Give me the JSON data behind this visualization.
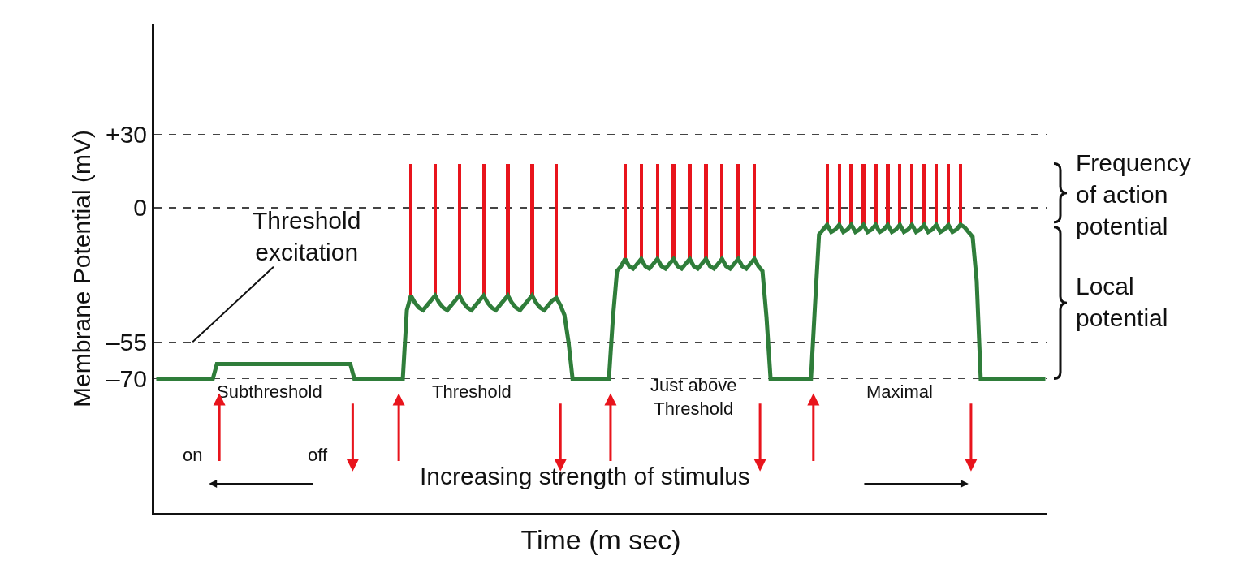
{
  "chart_data": {
    "type": "line",
    "xlabel": "Time (m sec)",
    "ylabel": "Membrane Potential (mV)",
    "categories": [
      null,
      null,
      null,
      null,
      null,
      null,
      null,
      null,
      null,
      null,
      null,
      null,
      null,
      null,
      null,
      null,
      null,
      null,
      null,
      null,
      null,
      null,
      null,
      null,
      null,
      null,
      null,
      null,
      null,
      null,
      null,
      null,
      null,
      null,
      null,
      null,
      null,
      null,
      null,
      null,
      null,
      null,
      null,
      null,
      null,
      null,
      null,
      null,
      null,
      null,
      null,
      null,
      null,
      null,
      null,
      null,
      null,
      null,
      null,
      null,
      null,
      null,
      null,
      null,
      null,
      null,
      null,
      null,
      null,
      null,
      null,
      null,
      null,
      null,
      null,
      null,
      null,
      null,
      null,
      null,
      null,
      null,
      null,
      null,
      null,
      null,
      null,
      null,
      null,
      null,
      null,
      null,
      null,
      null,
      null,
      null,
      null,
      null,
      null,
      null,
      null,
      null,
      null,
      null,
      null,
      null,
      null,
      null,
      null,
      null,
      null,
      null,
      null,
      null,
      null,
      null,
      null,
      null,
      null,
      null,
      null,
      null,
      null,
      null,
      null,
      null,
      null,
      null,
      null,
      null,
      null,
      null,
      null,
      null,
      null,
      null,
      null,
      null,
      null,
      null,
      null,
      null,
      null,
      null,
      null,
      null,
      null,
      null,
      null,
      null,
      null,
      null,
      null,
      null,
      null,
      null,
      null,
      null,
      null,
      null,
      null,
      null,
      null,
      null,
      null,
      null,
      null,
      null,
      null,
      null,
      null,
      null,
      null,
      null,
      null,
      null,
      null,
      null,
      null,
      null,
      null,
      null,
      null,
      null,
      null,
      null,
      null,
      null,
      null,
      null,
      null,
      null,
      null,
      null,
      null,
      null,
      null,
      null,
      null,
      null,
      null,
      null,
      null,
      null,
      null,
      null,
      null,
      null,
      null,
      null,
      null,
      null,
      null,
      null,
      null,
      null,
      null,
      null,
      null,
      null,
      null
    ],
    "series": [
      {
        "color": "#2f7d3a",
        "values": [
          -70,
          -70,
          -70,
          -70,
          -70,
          -70,
          -70,
          -70,
          -70,
          -70,
          -70,
          -70,
          -70,
          -70,
          -70,
          -64,
          -64,
          -64,
          -64,
          -64,
          -64,
          -64,
          -64,
          -64,
          -64,
          -64,
          -64,
          -64,
          -64,
          -64,
          -64,
          -64,
          -64,
          -64,
          -64,
          -64,
          -64,
          -64,
          -64,
          -64,
          -64,
          -64,
          -64,
          -64,
          -64,
          -64,
          -64,
          -64,
          -64,
          -70,
          -70,
          -70,
          -70,
          -70,
          -70,
          -70,
          -70,
          -70,
          -70,
          -70,
          -70,
          -70,
          -42,
          -36,
          -39,
          -41,
          -42,
          -40,
          -38,
          -36,
          -39,
          -41,
          -42,
          -40,
          -38,
          -36,
          -39,
          -41,
          -42,
          -40,
          -38,
          -36,
          -39,
          -41,
          -42,
          -40,
          -38,
          -36,
          -39,
          -41,
          -42,
          -40,
          -38,
          -36,
          -39,
          -41,
          -42,
          -40,
          -38,
          -37,
          -40,
          -44,
          -55,
          -70,
          -70,
          -70,
          -70,
          -70,
          -70,
          -70,
          -70,
          -70,
          -70,
          -45,
          -26,
          -24,
          -21,
          -24,
          -25,
          -23,
          -21,
          -24,
          -25,
          -23,
          -21,
          -24,
          -25,
          -23,
          -21,
          -24,
          -25,
          -23,
          -21,
          -24,
          -25,
          -23,
          -21,
          -24,
          -25,
          -23,
          -21,
          -24,
          -25,
          -23,
          -21,
          -24,
          -25,
          -23,
          -21,
          -24,
          -26,
          -45,
          -70,
          -70,
          -70,
          -70,
          -70,
          -70,
          -70,
          -70,
          -70,
          -70,
          -70,
          -40,
          -11,
          -9,
          -7,
          -10,
          -9,
          -7,
          -10,
          -9,
          -7,
          -10,
          -9,
          -7,
          -10,
          -9,
          -7,
          -10,
          -9,
          -7,
          -10,
          -9,
          -7,
          -10,
          -9,
          -7,
          -10,
          -9,
          -7,
          -10,
          -9,
          -7,
          -10,
          -9,
          -7,
          -10,
          -9,
          -7,
          -8,
          -10,
          -12,
          -30,
          -70,
          -70,
          -70,
          -70,
          -70,
          -70,
          -70,
          -70,
          -70,
          -70,
          -70,
          -70,
          -70,
          -70,
          -70,
          -70,
          -70
        ]
      },
      {
        "type": "bar",
        "color": "#e8141c",
        "base": [
          null,
          null,
          null,
          null,
          null,
          null,
          null,
          null,
          null,
          null,
          null,
          null,
          null,
          null,
          null,
          null,
          null,
          null,
          null,
          null,
          null,
          null,
          null,
          null,
          null,
          null,
          null,
          null,
          null,
          null,
          null,
          null,
          null,
          null,
          null,
          null,
          null,
          null,
          null,
          null,
          null,
          null,
          null,
          null,
          null,
          null,
          null,
          null,
          null,
          null,
          null,
          null,
          null,
          null,
          null,
          null,
          null,
          null,
          null,
          null,
          null,
          null,
          null,
          -36,
          null,
          null,
          null,
          null,
          null,
          -36,
          null,
          null,
          null,
          null,
          null,
          -36,
          null,
          null,
          null,
          null,
          null,
          -36,
          null,
          null,
          null,
          null,
          null,
          -36,
          null,
          null,
          null,
          null,
          null,
          -36,
          null,
          null,
          null,
          null,
          null,
          -37,
          null,
          null,
          null,
          null,
          null,
          null,
          null,
          null,
          null,
          null,
          null,
          null,
          null,
          null,
          null,
          null,
          -21,
          null,
          null,
          null,
          -21,
          null,
          null,
          null,
          -21,
          null,
          null,
          null,
          -21,
          null,
          null,
          null,
          -21,
          null,
          null,
          null,
          -21,
          null,
          null,
          null,
          -21,
          null,
          null,
          null,
          -21,
          null,
          null,
          null,
          -21,
          null,
          null,
          null,
          null,
          null,
          null,
          null,
          null,
          null,
          null,
          null,
          null,
          null,
          null,
          null,
          null,
          null,
          -7,
          null,
          null,
          -7,
          null,
          null,
          -7,
          null,
          null,
          -7,
          null,
          null,
          -7,
          null,
          null,
          -7,
          null,
          null,
          -7,
          null,
          null,
          -7,
          null,
          null,
          -7,
          null,
          null,
          -7,
          null,
          null,
          -7,
          null,
          null,
          -7,
          null,
          null,
          null,
          null,
          null,
          null,
          null,
          null,
          null,
          null,
          null,
          null,
          null,
          null,
          null,
          null,
          null,
          null,
          null,
          null,
          null
        ],
        "values": [
          null,
          null,
          null,
          null,
          null,
          null,
          null,
          null,
          null,
          null,
          null,
          null,
          null,
          null,
          null,
          null,
          null,
          null,
          null,
          null,
          null,
          null,
          null,
          null,
          null,
          null,
          null,
          null,
          null,
          null,
          null,
          null,
          null,
          null,
          null,
          null,
          null,
          null,
          null,
          null,
          null,
          null,
          null,
          null,
          null,
          null,
          null,
          null,
          null,
          null,
          null,
          null,
          null,
          null,
          null,
          null,
          null,
          null,
          null,
          null,
          null,
          null,
          null,
          54,
          null,
          null,
          null,
          null,
          null,
          54,
          null,
          null,
          null,
          null,
          null,
          54,
          null,
          null,
          null,
          null,
          null,
          54,
          null,
          null,
          null,
          null,
          null,
          54,
          null,
          null,
          null,
          null,
          null,
          54,
          null,
          null,
          null,
          null,
          null,
          55,
          null,
          null,
          null,
          null,
          null,
          null,
          null,
          null,
          null,
          null,
          null,
          null,
          null,
          null,
          null,
          null,
          39,
          null,
          null,
          null,
          39,
          null,
          null,
          null,
          39,
          null,
          null,
          null,
          39,
          null,
          null,
          null,
          39,
          null,
          null,
          null,
          39,
          null,
          null,
          null,
          39,
          null,
          null,
          null,
          39,
          null,
          null,
          null,
          39,
          null,
          null,
          null,
          null,
          null,
          null,
          null,
          null,
          null,
          null,
          null,
          null,
          null,
          null,
          null,
          null,
          null,
          25,
          null,
          null,
          25,
          null,
          null,
          25,
          null,
          null,
          25,
          null,
          null,
          25,
          null,
          null,
          25,
          null,
          null,
          25,
          null,
          null,
          25,
          null,
          null,
          25,
          null,
          null,
          25,
          null,
          null,
          25,
          null,
          null,
          25,
          null,
          null,
          null,
          null,
          null,
          null,
          null,
          null,
          null,
          null,
          null,
          null,
          null,
          null,
          null,
          null,
          null,
          null,
          null,
          null,
          null
        ]
      }
    ],
    "ylim": [
      -125,
      75
    ],
    "yticks": [
      {
        "value": 30,
        "label": "+30"
      },
      0,
      {
        "value": -55,
        "label": "–55"
      },
      {
        "value": -70,
        "label": "–70"
      }
    ],
    "grid": "y",
    "tick_labels": "y",
    "marker": "none",
    "line_style": "solid",
    "annotations": [
      "Threshold\nexcitation",
      "Subthreshold",
      "Threshold",
      "Just above\nThreshold",
      "Maximal",
      "on",
      "off",
      "Increasing strength of stimulus",
      "Frequency\nof action\npotential",
      "Local\npotential"
    ]
  }
}
